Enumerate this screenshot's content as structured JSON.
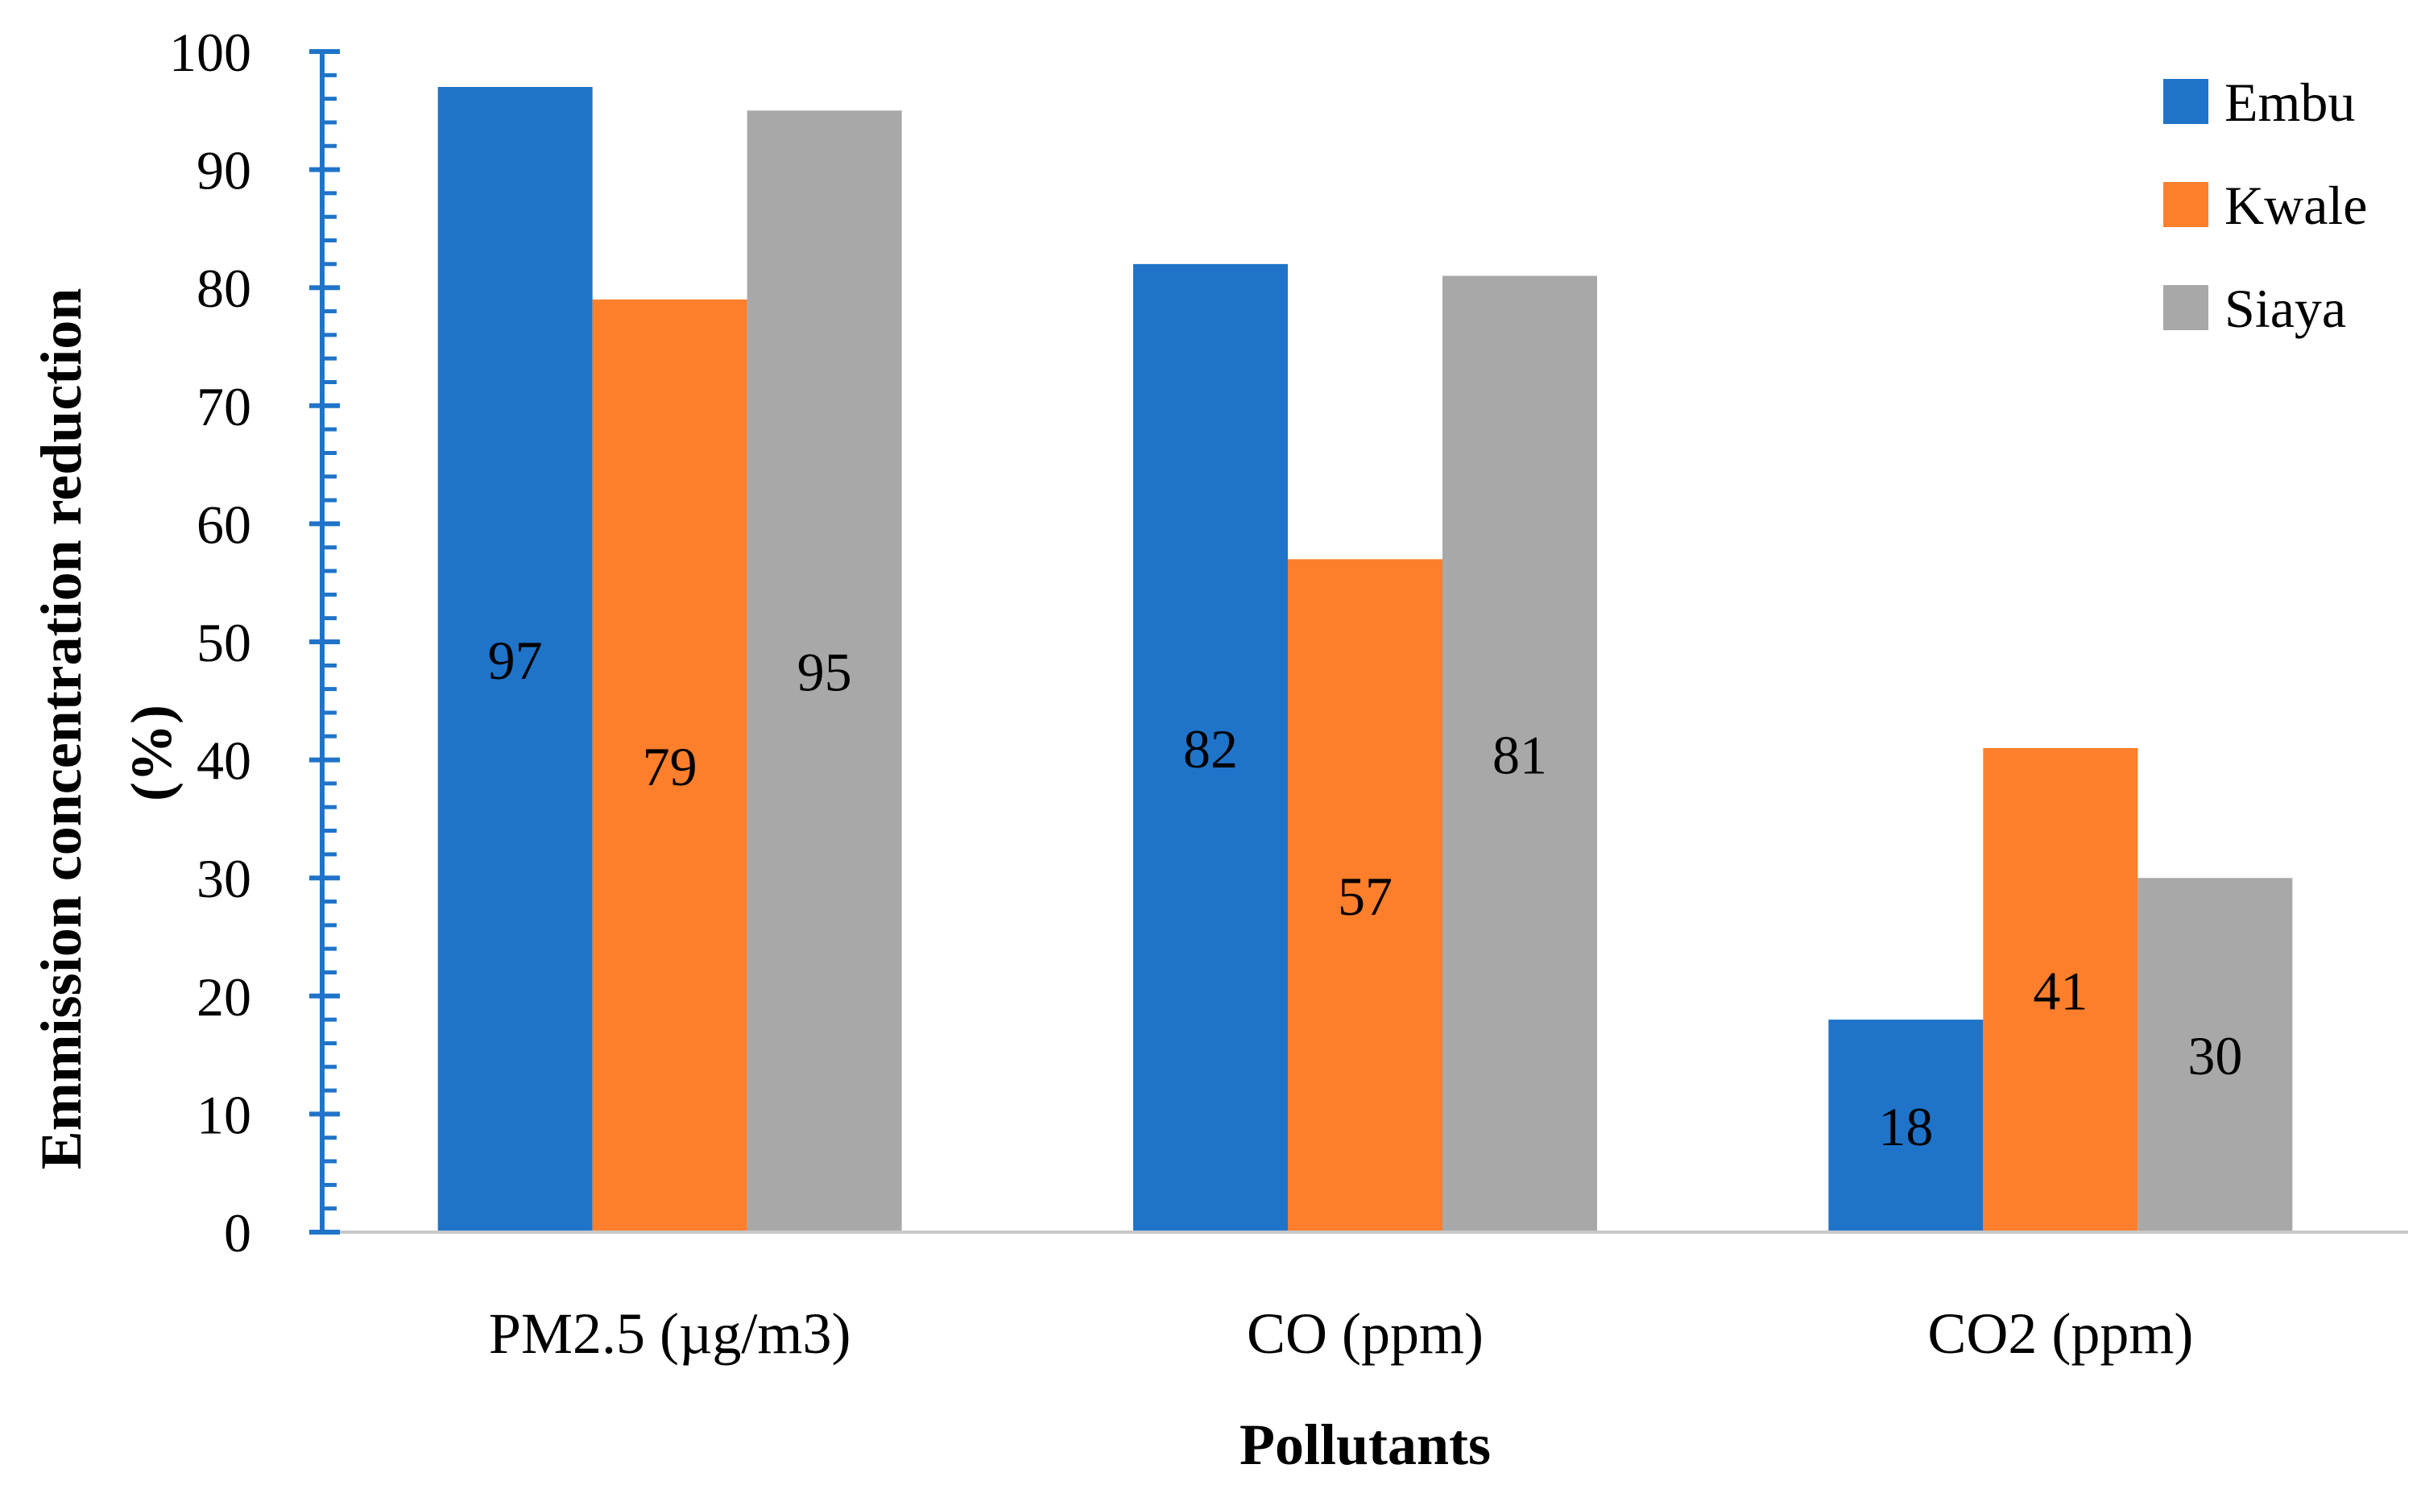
{
  "chart_data": {
    "type": "bar",
    "xlabel": "Pollutants",
    "ylabel": "Emmission concentration reduction",
    "ylabel_unit": "(%)",
    "categories": [
      "PM2.5 (µg/m3)",
      "CO (ppm)",
      "CO2 (ppm)"
    ],
    "series": [
      {
        "name": "Embu",
        "color": "#1f74c9",
        "values": [
          97,
          82,
          18
        ]
      },
      {
        "name": "Kwale",
        "color": "#fd7f2c",
        "values": [
          79,
          57,
          41
        ]
      },
      {
        "name": "Siaya",
        "color": "#a8a8a8",
        "values": [
          95,
          81,
          30
        ]
      }
    ],
    "ylim": [
      0,
      100
    ],
    "yticks": [
      "0",
      "10",
      "20",
      "30",
      "40",
      "50",
      "60",
      "70",
      "80",
      "90",
      "100"
    ],
    "axis_color": "#1f74c9",
    "grid": false,
    "legend_position": "top-right"
  }
}
